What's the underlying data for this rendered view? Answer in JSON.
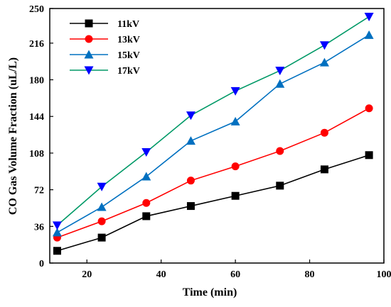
{
  "chart_data": {
    "type": "line",
    "xlabel": "Time (min)",
    "ylabel": "CO Gas Volume Fraction (uL/L)",
    "xlim": [
      10,
      100
    ],
    "ylim": [
      0,
      250
    ],
    "x_ticks": [
      "20",
      "40",
      "60",
      "80",
      "100"
    ],
    "y_ticks": [
      "0",
      "36",
      "72",
      "108",
      "144",
      "180",
      "216",
      "250"
    ],
    "x_tick_values": [
      20,
      40,
      60,
      80,
      100
    ],
    "y_tick_values": [
      0,
      36,
      72,
      108,
      144,
      180,
      216,
      250
    ],
    "grid": false,
    "legend_position": "top-left",
    "x": [
      12,
      24,
      36,
      48,
      60,
      72,
      84,
      96
    ],
    "series": [
      {
        "name": "11kV",
        "color": "#000000",
        "marker": "square",
        "values": [
          12,
          25,
          46,
          56,
          66,
          76,
          92,
          106
        ]
      },
      {
        "name": "13kV",
        "color": "#ff0000",
        "marker": "circle",
        "values": [
          25,
          41,
          59,
          81,
          95,
          110,
          128,
          152
        ]
      },
      {
        "name": "15kV",
        "color": "#0070c0",
        "marker": "triangle-up",
        "values": [
          30,
          55,
          85,
          120,
          139,
          176,
          197,
          224
        ]
      },
      {
        "name": "17kV",
        "color": "#0000ff",
        "line_color": "#009966",
        "marker": "triangle-down",
        "values": [
          37,
          75,
          109,
          145,
          169,
          189,
          214,
          242
        ]
      }
    ]
  }
}
